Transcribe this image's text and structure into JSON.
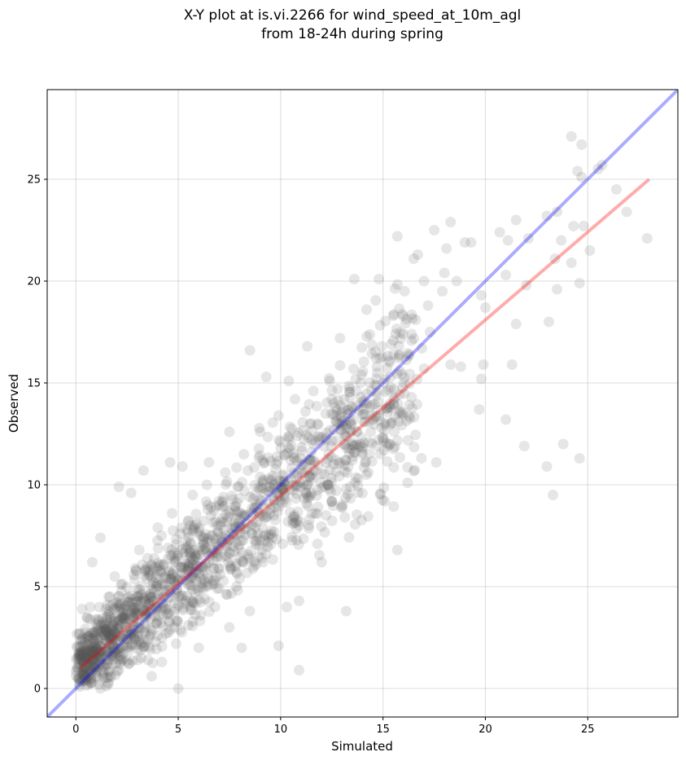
{
  "title_lines": [
    "X-Y plot at is.vi.2266 for wind_speed_at_10m_agl",
    "from 18-24h during spring"
  ],
  "chart_data": {
    "type": "scatter",
    "title": "X-Y plot at is.vi.2266 for wind_speed_at_10m_agl from 18-24h during spring",
    "xlabel": "Simulated",
    "ylabel": "Observed",
    "xlim": [
      -1.4,
      29.4
    ],
    "ylim": [
      -1.4,
      29.4
    ],
    "xticks": [
      0,
      5,
      10,
      15,
      20,
      25
    ],
    "yticks": [
      0,
      5,
      10,
      15,
      20,
      25
    ],
    "grid": true,
    "point_color": "#555555",
    "point_alpha": 0.15,
    "reference_line": {
      "from": [
        -1.4,
        -1.4
      ],
      "to": [
        29.4,
        29.4
      ],
      "color": "#0000ff"
    },
    "regression_line": {
      "from": [
        0.2,
        1.0
      ],
      "to": [
        28.0,
        25.0
      ],
      "color": "#ff0000"
    },
    "points": [
      [
        27.9,
        22.1
      ],
      [
        26.9,
        23.4
      ],
      [
        26.4,
        24.5
      ],
      [
        25.7,
        25.7
      ],
      [
        25.5,
        25.5
      ],
      [
        25.1,
        21.5
      ],
      [
        24.8,
        22.7
      ],
      [
        24.7,
        26.7
      ],
      [
        24.7,
        25.1
      ],
      [
        24.5,
        25.4
      ],
      [
        24.3,
        22.7
      ],
      [
        24.2,
        27.1
      ],
      [
        24.2,
        20.9
      ],
      [
        24.6,
        19.9
      ],
      [
        24.6,
        11.3
      ],
      [
        23.8,
        12.0
      ],
      [
        23.5,
        23.4
      ],
      [
        23.4,
        21.1
      ],
      [
        23.5,
        19.6
      ],
      [
        23.3,
        9.5
      ],
      [
        23.1,
        18.0
      ],
      [
        23.0,
        23.2
      ],
      [
        23.7,
        22.0
      ],
      [
        23.0,
        10.9
      ],
      [
        22.1,
        22.1
      ],
      [
        22.0,
        19.8
      ],
      [
        21.9,
        11.9
      ],
      [
        21.5,
        23.0
      ],
      [
        21.5,
        17.9
      ],
      [
        21.3,
        15.9
      ],
      [
        21.1,
        22.0
      ],
      [
        21.0,
        20.3
      ],
      [
        21.0,
        13.2
      ],
      [
        20.7,
        22.4
      ],
      [
        20.0,
        18.7
      ],
      [
        19.8,
        19.3
      ],
      [
        19.9,
        15.9
      ],
      [
        19.8,
        15.2
      ],
      [
        19.7,
        13.7
      ],
      [
        19.3,
        21.9
      ],
      [
        19.0,
        21.9
      ],
      [
        18.8,
        15.8
      ],
      [
        18.3,
        22.9
      ],
      [
        18.3,
        15.9
      ],
      [
        18.1,
        21.6
      ],
      [
        18.0,
        20.4
      ],
      [
        17.6,
        11.1
      ],
      [
        17.5,
        22.5
      ],
      [
        17.3,
        17.5
      ],
      [
        17.0,
        20.0
      ],
      [
        17.0,
        15.7
      ],
      [
        16.7,
        21.3
      ],
      [
        16.5,
        21.1
      ],
      [
        16.2,
        10.1
      ],
      [
        15.7,
        22.2
      ],
      [
        15.7,
        6.8
      ],
      [
        15.5,
        18.3
      ],
      [
        15.3,
        12.0
      ],
      [
        14.8,
        20.1
      ],
      [
        14.4,
        12.6
      ],
      [
        14.2,
        18.6
      ],
      [
        13.9,
        12.0
      ],
      [
        13.6,
        20.1
      ],
      [
        13.2,
        3.8
      ],
      [
        12.9,
        17.2
      ],
      [
        12.5,
        14.2
      ],
      [
        12.0,
        6.2
      ],
      [
        11.8,
        7.1
      ],
      [
        11.8,
        13.0
      ],
      [
        11.3,
        16.8
      ],
      [
        10.9,
        0.9
      ],
      [
        10.9,
        4.3
      ],
      [
        10.4,
        15.1
      ],
      [
        10.3,
        4.0
      ],
      [
        10.2,
        9.6
      ],
      [
        9.9,
        2.1
      ],
      [
        9.3,
        15.3
      ],
      [
        9.1,
        11.2
      ],
      [
        8.5,
        16.6
      ],
      [
        8.5,
        3.8
      ],
      [
        8.3,
        8.5
      ],
      [
        8.1,
        2.0
      ],
      [
        7.5,
        12.6
      ],
      [
        7.5,
        3.0
      ],
      [
        7.0,
        9.0
      ],
      [
        6.5,
        11.1
      ],
      [
        6.0,
        2.0
      ],
      [
        5.6,
        7.1
      ],
      [
        5.5,
        8.2
      ],
      [
        5.2,
        10.9
      ],
      [
        5.0,
        0.0
      ],
      [
        4.8,
        3.0
      ],
      [
        4.6,
        11.1
      ],
      [
        4.3,
        6.1
      ],
      [
        3.9,
        2.3
      ],
      [
        3.8,
        5.2
      ],
      [
        3.3,
        10.7
      ],
      [
        3.0,
        4.5
      ],
      [
        2.7,
        9.6
      ],
      [
        2.5,
        2.0
      ],
      [
        2.1,
        9.9
      ],
      [
        2.1,
        0.9
      ],
      [
        1.9,
        5.5
      ],
      [
        1.2,
        7.4
      ],
      [
        1.2,
        0.0
      ],
      [
        0.8,
        6.2
      ],
      [
        0.7,
        4.0
      ],
      [
        0.3,
        3.9
      ],
      [
        0.5,
        1.5
      ],
      [
        0.9,
        2.3
      ],
      [
        1.5,
        1.8
      ],
      [
        1.8,
        3.1
      ],
      [
        2.3,
        2.6
      ],
      [
        2.8,
        3.5
      ],
      [
        3.4,
        3.0
      ],
      [
        3.6,
        4.6
      ],
      [
        4.1,
        4.4
      ],
      [
        4.4,
        5.4
      ],
      [
        4.9,
        5.1
      ],
      [
        5.3,
        6.0
      ],
      [
        5.8,
        5.7
      ],
      [
        6.2,
        6.8
      ],
      [
        6.7,
        6.3
      ],
      [
        7.1,
        7.2
      ],
      [
        7.6,
        7.6
      ],
      [
        8.0,
        8.3
      ],
      [
        8.6,
        8.0
      ],
      [
        9.0,
        9.1
      ],
      [
        9.5,
        8.8
      ],
      [
        10.0,
        9.9
      ],
      [
        10.5,
        10.3
      ],
      [
        11.0,
        11.0
      ],
      [
        11.5,
        11.6
      ],
      [
        12.1,
        11.9
      ],
      [
        12.6,
        12.7
      ],
      [
        13.0,
        12.9
      ],
      [
        13.5,
        13.8
      ],
      [
        14.1,
        14.0
      ],
      [
        14.6,
        14.9
      ],
      [
        15.1,
        15.2
      ],
      [
        15.8,
        15.6
      ],
      [
        16.3,
        16.4
      ],
      [
        16.9,
        16.7
      ],
      [
        6.9,
        4.9
      ],
      [
        7.8,
        6.0
      ],
      [
        8.8,
        7.1
      ],
      [
        9.6,
        7.4
      ],
      [
        10.6,
        8.1
      ],
      [
        11.4,
        9.4
      ],
      [
        12.3,
        10.0
      ],
      [
        13.3,
        10.9
      ],
      [
        14.0,
        11.5
      ],
      [
        15.0,
        12.3
      ],
      [
        3.1,
        6.8
      ],
      [
        4.0,
        7.9
      ],
      [
        4.7,
        8.6
      ],
      [
        5.7,
        9.5
      ],
      [
        6.4,
        10.0
      ],
      [
        7.3,
        10.6
      ],
      [
        8.2,
        11.5
      ],
      [
        9.0,
        12.6
      ],
      [
        9.9,
        13.4
      ],
      [
        10.7,
        14.2
      ],
      [
        11.6,
        14.6
      ],
      [
        12.4,
        15.1
      ],
      [
        1.4,
        2.9
      ],
      [
        2.0,
        4.0
      ],
      [
        2.6,
        1.2
      ],
      [
        3.2,
        1.5
      ],
      [
        3.7,
        0.6
      ],
      [
        4.2,
        1.3
      ],
      [
        4.9,
        2.2
      ],
      [
        5.5,
        3.1
      ],
      [
        6.1,
        3.6
      ],
      [
        6.8,
        4.0
      ],
      [
        7.4,
        4.6
      ],
      [
        8.0,
        5.4
      ],
      [
        8.7,
        6.0
      ],
      [
        9.3,
        6.6
      ],
      [
        10.1,
        7.1
      ],
      [
        10.9,
        8.0
      ],
      [
        11.7,
        8.6
      ],
      [
        12.5,
        9.2
      ],
      [
        13.4,
        9.9
      ],
      [
        14.2,
        10.5
      ],
      [
        0.4,
        0.7
      ],
      [
        0.6,
        2.6
      ],
      [
        1.0,
        3.4
      ],
      [
        1.6,
        4.5
      ],
      [
        2.2,
        5.1
      ],
      [
        2.9,
        5.9
      ],
      [
        3.5,
        6.4
      ],
      [
        4.5,
        6.9
      ],
      [
        5.1,
        7.6
      ],
      [
        5.9,
        8.1
      ],
      [
        6.6,
        8.9
      ],
      [
        7.2,
        9.4
      ],
      [
        7.9,
        9.9
      ],
      [
        8.4,
        10.7
      ],
      [
        9.2,
        11.1
      ],
      [
        10.0,
        11.8
      ],
      [
        10.8,
        12.4
      ],
      [
        11.5,
        13.0
      ],
      [
        12.2,
        13.5
      ],
      [
        13.1,
        14.2
      ],
      [
        13.9,
        15.0
      ],
      [
        14.7,
        15.8
      ],
      [
        15.4,
        16.9
      ],
      [
        16.0,
        17.4
      ],
      [
        16.6,
        18.1
      ],
      [
        17.2,
        18.8
      ],
      [
        17.9,
        19.5
      ],
      [
        18.6,
        20.0
      ]
    ]
  }
}
